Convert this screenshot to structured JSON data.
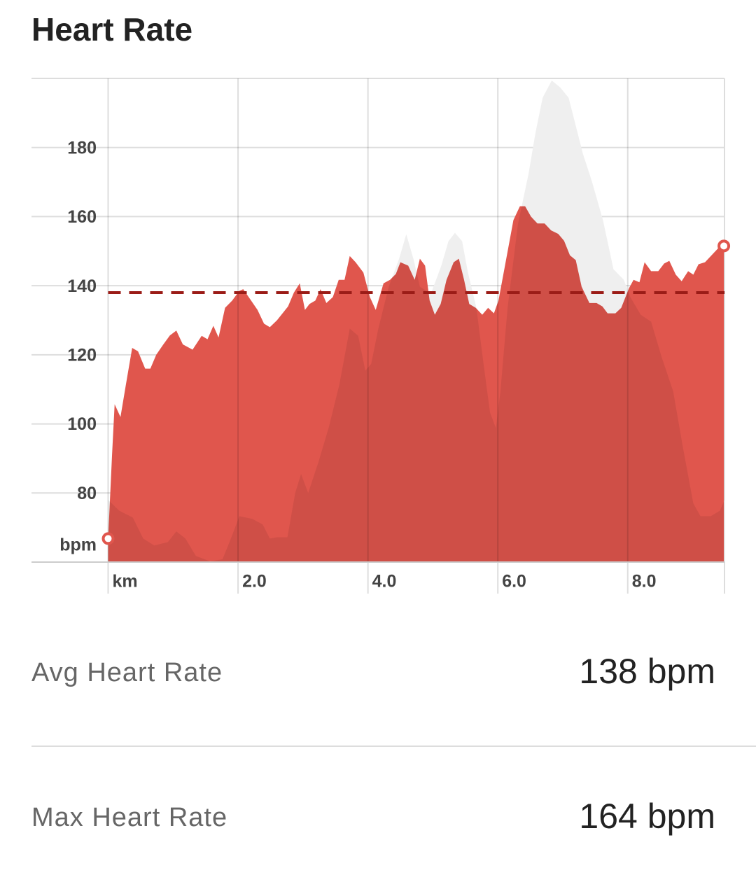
{
  "title": "Heart Rate",
  "chart_data": {
    "type": "area",
    "ylabel": "bpm",
    "xlim": [
      0,
      9.49
    ],
    "ylim": [
      60,
      200
    ],
    "xticks": [
      {
        "value": 0,
        "label": "km"
      },
      {
        "value": 2,
        "label": "2.0"
      },
      {
        "value": 4,
        "label": "4.0"
      },
      {
        "value": 6,
        "label": "6.0"
      },
      {
        "value": 8,
        "label": "8.0"
      }
    ],
    "yticks": [
      80,
      100,
      120,
      140,
      160,
      180
    ],
    "grid": true,
    "reference_line": 138,
    "reference_color": "#9b1c17",
    "series": [
      {
        "color": "#e0564d",
        "x": [
          0,
          0.06,
          0.1,
          0.19,
          0.27,
          0.37,
          0.46,
          0.57,
          0.65,
          0.74,
          0.85,
          0.95,
          1.05,
          1.15,
          1.3,
          1.44,
          1.53,
          1.62,
          1.7,
          1.8,
          1.91,
          2.02,
          2.08,
          2.19,
          2.3,
          2.4,
          2.49,
          2.6,
          2.77,
          2.86,
          2.95,
          3.03,
          3.1,
          3.19,
          3.27,
          3.36,
          3.46,
          3.55,
          3.64,
          3.72,
          3.81,
          3.93,
          4.03,
          4.12,
          4.24,
          4.34,
          4.43,
          4.5,
          4.62,
          4.72,
          4.8,
          4.88,
          4.95,
          5.03,
          5.12,
          5.21,
          5.32,
          5.4,
          5.48,
          5.56,
          5.66,
          5.76,
          5.85,
          5.94,
          6.01,
          6.11,
          6.24,
          6.34,
          6.42,
          6.51,
          6.61,
          6.72,
          6.82,
          6.93,
          7.02,
          7.11,
          7.2,
          7.29,
          7.41,
          7.52,
          7.61,
          7.69,
          7.81,
          7.9,
          8.02,
          8.09,
          8.18,
          8.26,
          8.36,
          8.47,
          8.56,
          8.64,
          8.74,
          8.83,
          8.93,
          9.01,
          9.09,
          9.19,
          9.29,
          9.39,
          9.48
        ],
        "values": [
          66.8,
          91,
          105.7,
          102,
          111,
          122,
          121,
          116,
          116,
          120,
          123,
          125.6,
          127,
          123,
          121.5,
          125.5,
          124.5,
          128.4,
          125,
          133.6,
          135.7,
          138.5,
          139,
          136,
          133,
          129,
          128,
          130,
          134,
          138,
          140.7,
          133,
          134.7,
          135.7,
          139,
          135,
          136.7,
          141.7,
          141.7,
          148.6,
          146.8,
          143.8,
          136.7,
          133,
          140.7,
          141.7,
          143.4,
          146.8,
          145.8,
          141.7,
          147.8,
          145.8,
          135.7,
          131.6,
          134.7,
          141.7,
          146.8,
          147.8,
          141.7,
          134.7,
          133.6,
          131.6,
          133.6,
          132,
          135.7,
          145.8,
          159,
          163,
          163,
          160,
          158,
          158,
          156,
          155,
          153,
          148.8,
          147.4,
          139.7,
          135,
          135,
          134,
          132,
          132,
          133.6,
          139.3,
          141.7,
          141,
          146.8,
          144.2,
          144.2,
          146.4,
          147.2,
          143.2,
          141.3,
          144.2,
          143.2,
          146.2,
          146.8,
          148.8,
          150.8,
          151.5
        ]
      },
      {
        "color": "#efefef",
        "x": [
          0,
          0.17,
          0.38,
          0.54,
          0.71,
          0.92,
          1.05,
          1.19,
          1.35,
          1.57,
          1.76,
          1.89,
          2.02,
          2.22,
          2.38,
          2.49,
          2.6,
          2.76,
          2.88,
          2.97,
          3.08,
          3.24,
          3.4,
          3.56,
          3.72,
          3.85,
          3.96,
          4.05,
          4.16,
          4.32,
          4.48,
          4.59,
          4.7,
          4.8,
          4.97,
          5.13,
          5.24,
          5.34,
          5.45,
          5.54,
          5.67,
          5.78,
          5.88,
          5.97,
          6.04,
          6.15,
          6.31,
          6.47,
          6.58,
          6.69,
          6.83,
          6.96,
          7.09,
          7.2,
          7.31,
          7.45,
          7.62,
          7.78,
          7.94,
          8.04,
          8.2,
          8.36,
          8.52,
          8.7,
          8.85,
          9.01,
          9.12,
          9.28,
          9.42,
          9.49
        ],
        "values": [
          78,
          74.9,
          72.9,
          66.8,
          64.8,
          65.8,
          68.9,
          66.8,
          61.8,
          60.2,
          60.8,
          66.8,
          73.3,
          72.5,
          70.9,
          66.8,
          67.2,
          67.2,
          80,
          85.5,
          80,
          89.1,
          99.2,
          111.4,
          127.6,
          125.5,
          115.4,
          117.4,
          127.6,
          139.7,
          147.8,
          154.9,
          147.8,
          139.7,
          137.7,
          145.8,
          152.9,
          155.3,
          152.9,
          143.8,
          133.6,
          117.4,
          103.3,
          98.8,
          109.4,
          133.6,
          157.9,
          172.1,
          184.3,
          194.4,
          199.4,
          197.4,
          194.4,
          186.3,
          178.2,
          170.1,
          158.9,
          144.8,
          141.7,
          136.7,
          131.6,
          129.6,
          119.5,
          109.4,
          93.2,
          77,
          73.3,
          73.3,
          74.9,
          78
        ]
      }
    ]
  },
  "stats": [
    {
      "label": "Avg Heart Rate",
      "value": "138 bpm"
    },
    {
      "label": "Max Heart Rate",
      "value": "164 bpm"
    }
  ]
}
